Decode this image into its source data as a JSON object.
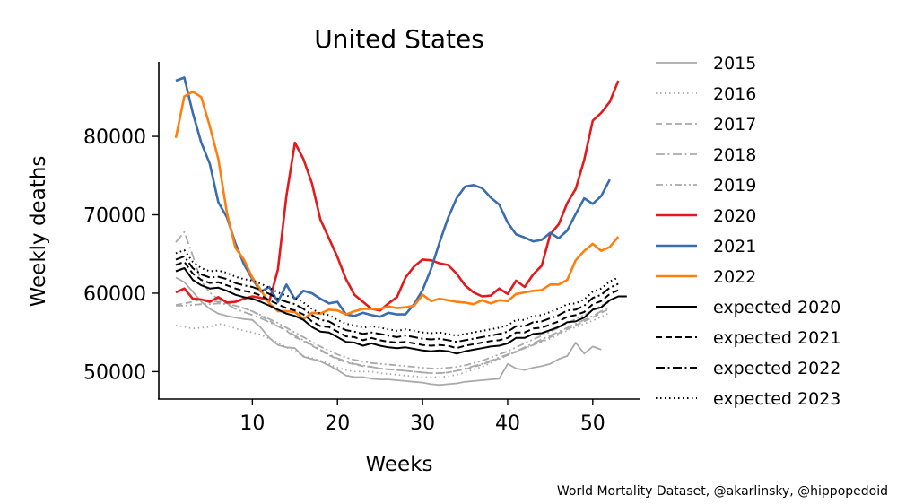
{
  "caption": "World Mortality Dataset, @akarlinsky, @hippopedoid",
  "chart_data": {
    "type": "line",
    "title": "United States",
    "xlabel": "Weeks",
    "ylabel": "Weekly deaths",
    "xlim": [
      -1,
      55.5
    ],
    "ylim": [
      46500,
      89500
    ],
    "xticks": [
      10,
      20,
      30,
      40,
      50
    ],
    "yticks": [
      50000,
      60000,
      70000,
      80000
    ],
    "grid": false,
    "legend_position": "right",
    "series": [
      {
        "name": "2015",
        "color": "#aaaaaa",
        "dash": "solid",
        "y": [
          62000,
          61400,
          60200,
          58900,
          58000,
          57400,
          57100,
          56900,
          56700,
          56600,
          55600,
          54300,
          53400,
          53100,
          53000,
          51900,
          51600,
          51300,
          50800,
          50200,
          49500,
          49300,
          49300,
          49100,
          49000,
          49000,
          48900,
          48800,
          48700,
          48600,
          48400,
          48300,
          48400,
          48500,
          48700,
          48800,
          48900,
          49000,
          49100,
          51000,
          50400,
          50200,
          50500,
          50700,
          51000,
          51600,
          52000,
          53700,
          52300,
          53200,
          52800,
          null
        ]
      },
      {
        "name": "2016",
        "color": "#aaaaaa",
        "dash": "dotted",
        "y": [
          55900,
          55700,
          55500,
          55600,
          55700,
          56100,
          55900,
          55500,
          55200,
          55000,
          54700,
          54200,
          53700,
          53100,
          52600,
          52000,
          51700,
          51400,
          51000,
          50500,
          50200,
          50000,
          50000,
          50000,
          49800,
          49700,
          49600,
          49500,
          49400,
          49300,
          49300,
          49300,
          49400,
          49600,
          49900,
          50300,
          50600,
          51100,
          51600,
          52100,
          52600,
          53000,
          53400,
          53800,
          54200,
          54700,
          55200,
          55700,
          56100,
          56500,
          57000,
          57500
        ]
      },
      {
        "name": "2017",
        "color": "#aaaaaa",
        "dash": "dashed",
        "y": [
          58500,
          58700,
          58900,
          59200,
          59100,
          58900,
          58700,
          58400,
          58100,
          57700,
          57100,
          56500,
          55800,
          55200,
          54400,
          53900,
          53300,
          52700,
          52100,
          51600,
          51200,
          50900,
          50700,
          50600,
          50400,
          50300,
          50200,
          50100,
          50000,
          49900,
          49800,
          49800,
          49900,
          50100,
          50300,
          50600,
          50900,
          51300,
          51700,
          52100,
          52500,
          53000,
          53400,
          53900,
          54400,
          54900,
          55400,
          55900,
          56400,
          56900,
          57500,
          58000
        ]
      },
      {
        "name": "2018",
        "color": "#aaaaaa",
        "dash": "dashdot",
        "y": [
          66500,
          67800,
          64800,
          61500,
          60100,
          59200,
          58600,
          58000,
          57600,
          57200,
          56800,
          56300,
          55800,
          55300,
          54600,
          54000,
          53400,
          52800,
          52200,
          51700,
          51300,
          51000,
          50800,
          50600,
          50400,
          50300,
          50200,
          50100,
          50000,
          49900,
          49800,
          49800,
          49900,
          50100,
          50400,
          50700,
          51000,
          51400,
          51800,
          52200,
          52600,
          53100,
          53600,
          54100,
          54600,
          55100,
          55600,
          56100,
          56600,
          57100,
          57700,
          58200
        ]
      },
      {
        "name": "2019",
        "color": "#aaaaaa",
        "dash": "dashdotdot",
        "y": [
          58400,
          58400,
          58500,
          58600,
          58600,
          58700,
          58600,
          58400,
          58100,
          57700,
          57200,
          56700,
          56200,
          55600,
          55000,
          54400,
          53800,
          53200,
          52700,
          52200,
          51800,
          51500,
          51300,
          51100,
          51000,
          50900,
          50800,
          50700,
          50600,
          50500,
          50400,
          50400,
          50500,
          50600,
          50800,
          51100,
          51400,
          51800,
          52200,
          52600,
          53100,
          53600,
          54100,
          54600,
          55100,
          55600,
          56200,
          56700,
          57200,
          57800,
          58400,
          58900
        ]
      },
      {
        "name": "2020",
        "color": "#e31a1c",
        "dash": "solid",
        "y": [
          60100,
          60600,
          59300,
          59200,
          58900,
          59500,
          58800,
          58900,
          59300,
          59600,
          59400,
          59000,
          63000,
          72400,
          79200,
          77100,
          74000,
          69400,
          67000,
          64600,
          61800,
          59800,
          58900,
          58000,
          57800,
          58700,
          59500,
          62000,
          63400,
          64300,
          64200,
          63800,
          63600,
          62500,
          61000,
          60100,
          59600,
          59700,
          60600,
          59900,
          61600,
          60800,
          62400,
          63500,
          67500,
          68800,
          71500,
          73300,
          77000,
          82000,
          83000,
          84400,
          87100
        ]
      },
      {
        "name": "2021",
        "color": "#3a6cb0",
        "dash": "solid",
        "y": [
          87100,
          87500,
          83000,
          79200,
          76500,
          71600,
          69700,
          66400,
          63700,
          61800,
          60200,
          60800,
          58900,
          61100,
          59200,
          60300,
          60000,
          59300,
          58700,
          58900,
          57300,
          57100,
          57500,
          57200,
          57000,
          57500,
          57300,
          57300,
          58600,
          60400,
          63100,
          66500,
          69600,
          72100,
          73600,
          73800,
          73400,
          72200,
          71300,
          69000,
          67500,
          67100,
          66600,
          66800,
          67700,
          67000,
          68000,
          70100,
          72100,
          71400,
          72400,
          74500
        ]
      },
      {
        "name": "2022",
        "color": "#ff7f0e",
        "dash": "solid",
        "y": [
          79800,
          85100,
          85700,
          85000,
          81300,
          77100,
          70300,
          65800,
          64300,
          62000,
          60400,
          58700,
          57700,
          57700,
          57600,
          56700,
          57500,
          57400,
          57900,
          57800,
          57300,
          57700,
          58000,
          58000,
          58000,
          58300,
          58100,
          58200,
          58400,
          59800,
          59000,
          59300,
          59100,
          58900,
          58800,
          58600,
          59100,
          58700,
          59100,
          59000,
          59900,
          60100,
          60300,
          60400,
          61100,
          61100,
          61700,
          64200,
          65400,
          66300,
          65400,
          65900,
          67200
        ]
      },
      {
        "name": "expected 2020",
        "color": "#000000",
        "dash": "solid",
        "y": [
          62800,
          63200,
          61700,
          61000,
          60600,
          60700,
          60300,
          59800,
          59500,
          59300,
          58900,
          58400,
          57900,
          57400,
          57100,
          56600,
          55700,
          55100,
          55000,
          54400,
          53800,
          53700,
          53300,
          53600,
          53300,
          53100,
          53000,
          53100,
          52900,
          52700,
          52600,
          52700,
          52600,
          52300,
          52600,
          52800,
          53000,
          53200,
          53300,
          53600,
          54300,
          54300,
          54800,
          54900,
          55300,
          55700,
          56300,
          56400,
          56900,
          57900,
          58200,
          59100,
          59600,
          59600
        ]
      },
      {
        "name": "expected 2021",
        "color": "#000000",
        "dash": "dashed",
        "y": [
          63600,
          64000,
          62500,
          61700,
          61300,
          61400,
          61000,
          60600,
          60300,
          60100,
          59700,
          59100,
          58600,
          58100,
          57800,
          57300,
          56400,
          55800,
          55700,
          55100,
          54500,
          54400,
          54000,
          54300,
          54000,
          53800,
          53700,
          53800,
          53600,
          53400,
          53300,
          53400,
          53300,
          53000,
          53300,
          53500,
          53700,
          53900,
          54000,
          54300,
          55000,
          55000,
          55500,
          55600,
          56000,
          56400,
          57000,
          57200,
          57600,
          58600,
          59000,
          59900,
          60400
        ]
      },
      {
        "name": "expected 2022",
        "color": "#000000",
        "dash": "dashdot",
        "y": [
          64300,
          64700,
          63200,
          62400,
          62000,
          62100,
          61800,
          61300,
          61000,
          60800,
          60400,
          59900,
          59300,
          58900,
          58600,
          58000,
          57200,
          56600,
          56400,
          55800,
          55300,
          55100,
          54800,
          55000,
          54800,
          54600,
          54400,
          54600,
          54400,
          54200,
          54100,
          54200,
          54000,
          53800,
          54000,
          54200,
          54400,
          54600,
          54800,
          55100,
          55800,
          55800,
          56300,
          56400,
          56800,
          57200,
          57800,
          57900,
          58400,
          59400,
          59800,
          60700,
          61200
        ]
      },
      {
        "name": "expected 2023",
        "color": "#000000",
        "dash": "dotted",
        "y": [
          65100,
          65500,
          64000,
          63200,
          62800,
          62900,
          62600,
          62100,
          61800,
          61600,
          61200,
          60700,
          60100,
          59700,
          59400,
          58800,
          58000,
          57400,
          57200,
          56600,
          56100,
          55900,
          55600,
          55800,
          55600,
          55400,
          55200,
          55400,
          55200,
          55000,
          54900,
          55000,
          54800,
          54600,
          54800,
          55000,
          55200,
          55400,
          55600,
          55900,
          56600,
          56600,
          57100,
          57200,
          57600,
          58000,
          58600,
          58700,
          59200,
          60200,
          60600,
          61500,
          62000
        ]
      }
    ]
  }
}
